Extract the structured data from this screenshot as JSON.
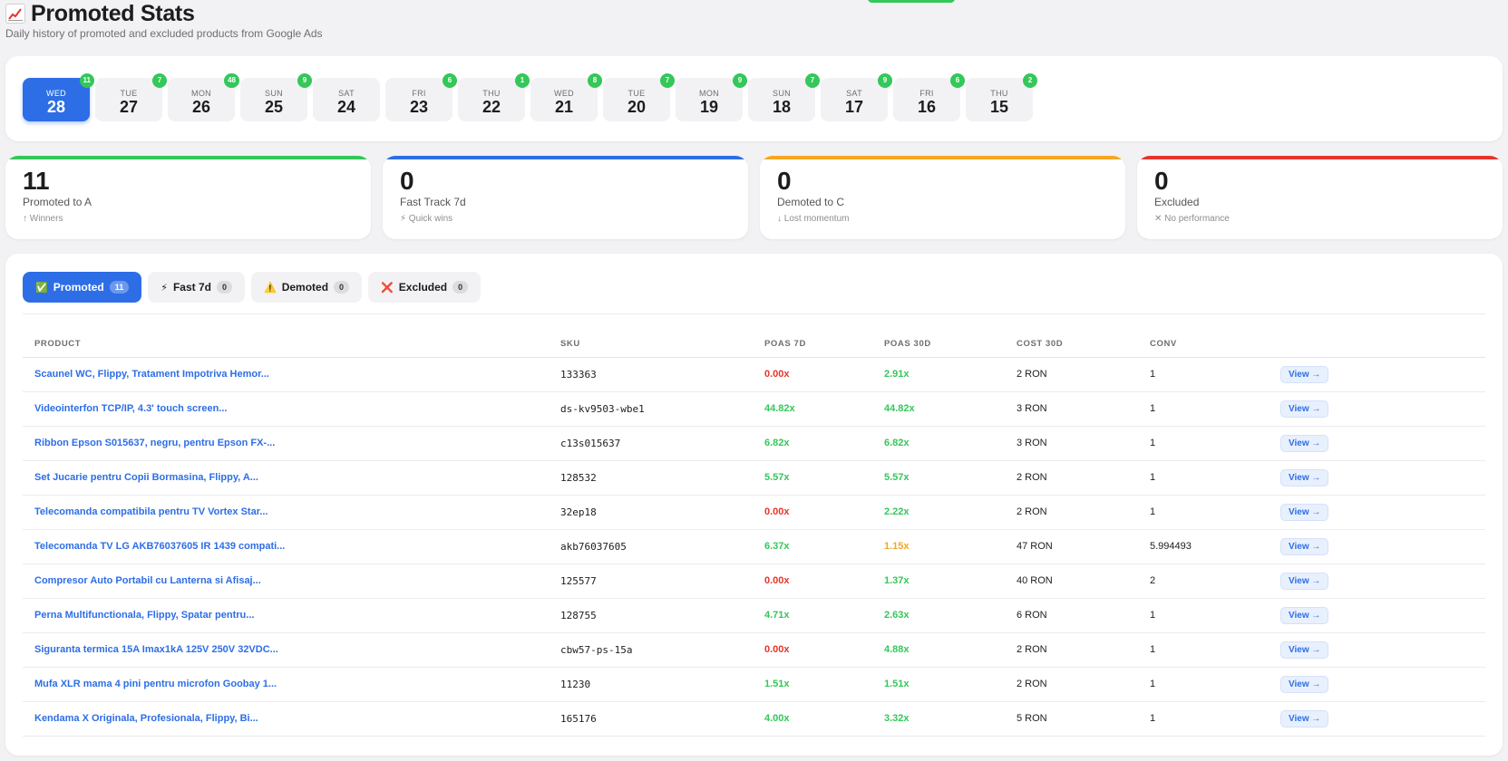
{
  "header": {
    "title": "Promoted Stats",
    "subtitle": "Daily history of promoted and excluded products from Google Ads",
    "icon": "chart-increasing-icon"
  },
  "days": [
    {
      "dow": "WED",
      "num": "28",
      "badge": "11",
      "active": true
    },
    {
      "dow": "TUE",
      "num": "27",
      "badge": "7"
    },
    {
      "dow": "MON",
      "num": "26",
      "badge": "48"
    },
    {
      "dow": "SUN",
      "num": "25",
      "badge": "9"
    },
    {
      "dow": "SAT",
      "num": "24",
      "badge": ""
    },
    {
      "dow": "FRI",
      "num": "23",
      "badge": "6"
    },
    {
      "dow": "THU",
      "num": "22",
      "badge": "1"
    },
    {
      "dow": "WED",
      "num": "21",
      "badge": "8"
    },
    {
      "dow": "TUE",
      "num": "20",
      "badge": "7"
    },
    {
      "dow": "MON",
      "num": "19",
      "badge": "9"
    },
    {
      "dow": "SUN",
      "num": "18",
      "badge": "7"
    },
    {
      "dow": "SAT",
      "num": "17",
      "badge": "9"
    },
    {
      "dow": "FRI",
      "num": "16",
      "badge": "6"
    },
    {
      "dow": "THU",
      "num": "15",
      "badge": "2"
    }
  ],
  "stats": [
    {
      "value": "11",
      "label": "Promoted to A",
      "sub": "↑ Winners",
      "color": "#34c759"
    },
    {
      "value": "0",
      "label": "Fast Track 7d",
      "sub": "⚡ Quick wins",
      "color": "#2d6ee6"
    },
    {
      "value": "0",
      "label": "Demoted to C",
      "sub": "↓ Lost momentum",
      "color": "#f5a623"
    },
    {
      "value": "0",
      "label": "Excluded",
      "sub": "✕ No performance",
      "color": "#e5352b"
    }
  ],
  "tabs": [
    {
      "icon": "✅",
      "label": "Promoted",
      "count": "11",
      "active": true
    },
    {
      "icon": "⚡",
      "label": "Fast 7d",
      "count": "0"
    },
    {
      "icon": "⚠️",
      "label": "Demoted",
      "count": "0"
    },
    {
      "icon": "❌",
      "label": "Excluded",
      "count": "0"
    }
  ],
  "table": {
    "columns": [
      "PRODUCT",
      "SKU",
      "POAS 7D",
      "POAS 30D",
      "COST 30D",
      "CONV",
      ""
    ],
    "view_label": "View →",
    "rows": [
      {
        "product": "Scaunel WC, Flippy, Tratament Impotriva Hemor...",
        "sku": "133363",
        "poas7": "0.00x",
        "poas7c": "red",
        "poas30": "2.91x",
        "poas30c": "green",
        "cost": "2 RON",
        "conv": "1"
      },
      {
        "product": "Videointerfon TCP/IP, 4.3' touch screen...",
        "sku": "ds-kv9503-wbe1",
        "poas7": "44.82x",
        "poas7c": "green",
        "poas30": "44.82x",
        "poas30c": "green",
        "cost": "3 RON",
        "conv": "1"
      },
      {
        "product": "Ribbon Epson S015637, negru, pentru Epson FX-...",
        "sku": "c13s015637",
        "poas7": "6.82x",
        "poas7c": "green",
        "poas30": "6.82x",
        "poas30c": "green",
        "cost": "3 RON",
        "conv": "1"
      },
      {
        "product": "Set Jucarie pentru Copii Bormasina, Flippy, A...",
        "sku": "128532",
        "poas7": "5.57x",
        "poas7c": "green",
        "poas30": "5.57x",
        "poas30c": "green",
        "cost": "2 RON",
        "conv": "1"
      },
      {
        "product": "Telecomanda compatibila pentru TV Vortex Star...",
        "sku": "32ep18",
        "poas7": "0.00x",
        "poas7c": "red",
        "poas30": "2.22x",
        "poas30c": "green",
        "cost": "2 RON",
        "conv": "1"
      },
      {
        "product": "Telecomanda TV LG AKB76037605 IR 1439 compati...",
        "sku": "akb76037605",
        "poas7": "6.37x",
        "poas7c": "green",
        "poas30": "1.15x",
        "poas30c": "orange",
        "cost": "47 RON",
        "conv": "5.994493"
      },
      {
        "product": "Compresor Auto Portabil cu Lanterna si Afisaj...",
        "sku": "125577",
        "poas7": "0.00x",
        "poas7c": "red",
        "poas30": "1.37x",
        "poas30c": "green",
        "cost": "40 RON",
        "conv": "2"
      },
      {
        "product": "Perna Multifunctionala, Flippy, Spatar pentru...",
        "sku": "128755",
        "poas7": "4.71x",
        "poas7c": "green",
        "poas30": "2.63x",
        "poas30c": "green",
        "cost": "6 RON",
        "conv": "1"
      },
      {
        "product": "Siguranta termica 15A Imax1kA 125V 250V 32VDC...",
        "sku": "cbw57-ps-15a",
        "poas7": "0.00x",
        "poas7c": "red",
        "poas30": "4.88x",
        "poas30c": "green",
        "cost": "2 RON",
        "conv": "1"
      },
      {
        "product": "Mufa XLR mama 4 pini pentru microfon Goobay 1...",
        "sku": "11230",
        "poas7": "1.51x",
        "poas7c": "green",
        "poas30": "1.51x",
        "poas30c": "green",
        "cost": "2 RON",
        "conv": "1"
      },
      {
        "product": "Kendama X Originala, Profesionala, Flippy, Bi...",
        "sku": "165176",
        "poas7": "4.00x",
        "poas7c": "green",
        "poas30": "3.32x",
        "poas30c": "green",
        "cost": "5 RON",
        "conv": "1"
      }
    ]
  }
}
